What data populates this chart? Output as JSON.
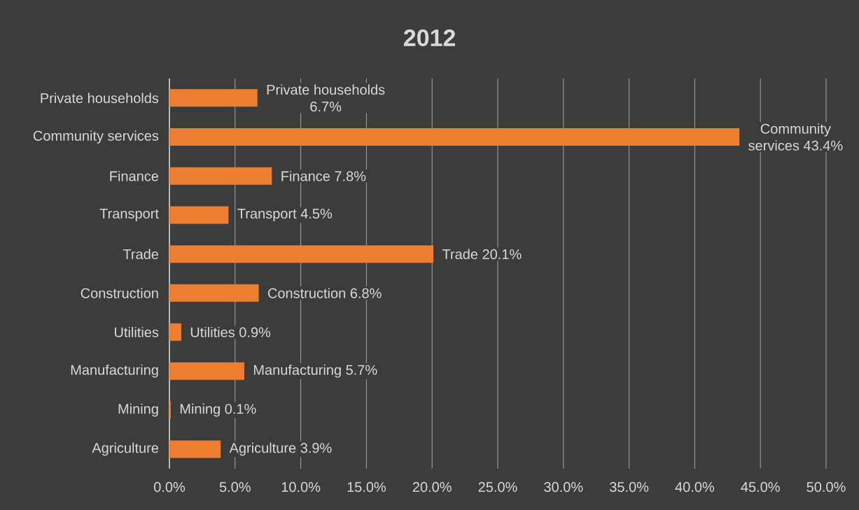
{
  "chart_data": {
    "type": "bar",
    "orientation": "horizontal",
    "title": "2012",
    "categories": [
      "Private households",
      "Community services",
      "Finance",
      "Transport",
      "Trade",
      "Construction",
      "Utilities",
      "Manufacturing",
      "Mining",
      "Agriculture"
    ],
    "values": [
      6.7,
      43.4,
      7.8,
      4.5,
      20.1,
      6.8,
      0.9,
      5.7,
      0.1,
      3.9
    ],
    "value_labels": [
      "Private households 6.7%",
      "Community services 43.4%",
      "Finance 7.8%",
      "Transport 4.5%",
      "Trade 20.1%",
      "Construction 6.8%",
      "Utilities 0.9%",
      "Manufacturing 5.7%",
      "Mining 0.1%",
      "Agriculture 3.9%"
    ],
    "color": "#ed7d31",
    "xlim": [
      0,
      50
    ],
    "xticks": [
      {
        "value": 0,
        "label": "0.0%"
      },
      {
        "value": 5,
        "label": "5.0%"
      },
      {
        "value": 10,
        "label": "10.0%"
      },
      {
        "value": 15,
        "label": "15.0%"
      },
      {
        "value": 20,
        "label": "20.0%"
      },
      {
        "value": 25,
        "label": "25.0%"
      },
      {
        "value": 30,
        "label": "30.0%"
      },
      {
        "value": 35,
        "label": "35.0%"
      },
      {
        "value": 40,
        "label": "40.0%"
      },
      {
        "value": 45,
        "label": "45.0%"
      },
      {
        "value": 50,
        "label": "50.0%"
      }
    ],
    "grid": "x"
  }
}
